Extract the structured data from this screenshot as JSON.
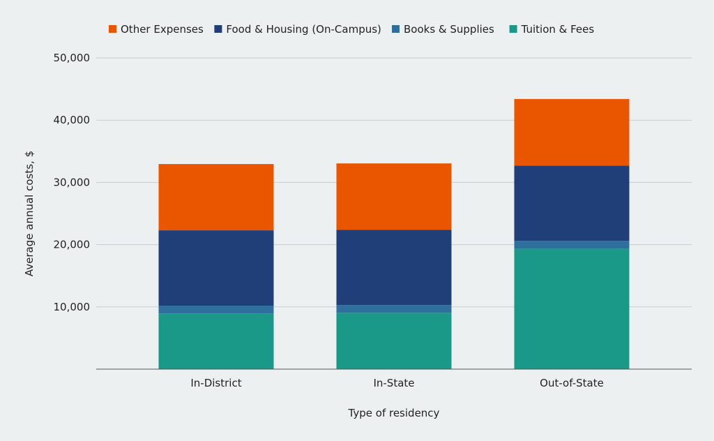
{
  "chart_data": {
    "type": "bar",
    "stacked": true,
    "title": "",
    "xlabel": "Type of residency",
    "ylabel": "Average annual costs, $",
    "ylim": [
      0,
      50000
    ],
    "yticks": [
      10000,
      20000,
      30000,
      40000,
      50000
    ],
    "ytick_labels": [
      "10,000",
      "20,000",
      "30,000",
      "40,000",
      "50,000"
    ],
    "grid": true,
    "legend_position": "top-center",
    "categories": [
      "In-District",
      "In-State",
      "Out-of-State"
    ],
    "series": [
      {
        "name": "Tuition & Fees",
        "color": "#1a9988",
        "values": [
          8950,
          9050,
          19350
        ]
      },
      {
        "name": "Books & Supplies",
        "color": "#2e6f9e",
        "values": [
          1250,
          1250,
          1250
        ]
      },
      {
        "name": "Food & Housing (On-Campus)",
        "color": "#203e78",
        "values": [
          12100,
          12100,
          12100
        ]
      },
      {
        "name": "Other Expenses",
        "color": "#ea5600",
        "values": [
          10650,
          10650,
          10700
        ]
      }
    ],
    "legend_order": [
      "Other Expenses",
      "Food & Housing (On-Campus)",
      "Books & Supplies",
      "Tuition & Fees"
    ]
  }
}
